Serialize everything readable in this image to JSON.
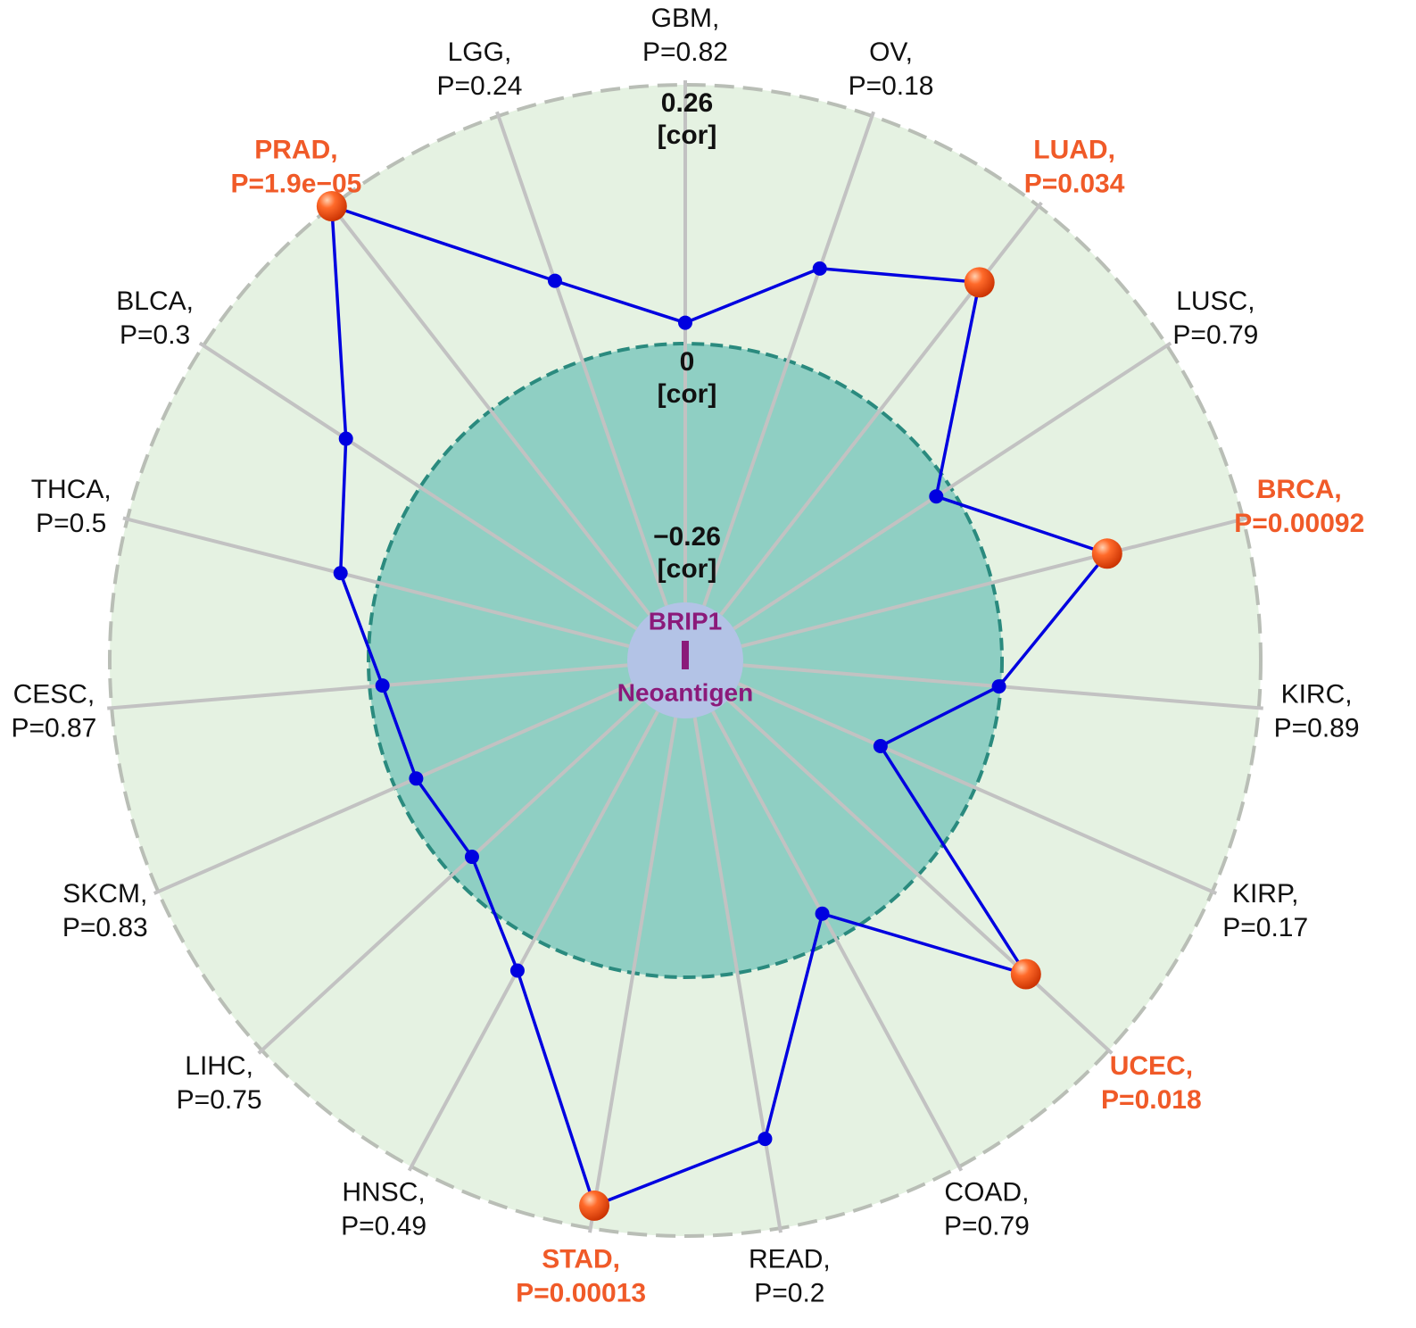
{
  "chart_data": {
    "type": "radar",
    "gene": "BRIP1",
    "feature": "Neoantigen",
    "categories": [
      "GBM,",
      "OV,",
      "LUAD,",
      "LUSC,",
      "BRCA,",
      "KIRC,",
      "KIRP,",
      "UCEC,",
      "COAD,",
      "READ,",
      "STAD,",
      "HNSC,",
      "LIHC,",
      "SKCM,",
      "CESC,",
      "THCA,",
      "BLCA,",
      "PRAD,",
      "LGG,"
    ],
    "p_labels": [
      "P=0.82",
      "P=0.18",
      "P=0.034",
      "P=0.79",
      "P=0.00092",
      "P=0.89",
      "P=0.17",
      "P=0.018",
      "P=0.79",
      "P=0.2",
      "P=0.00013",
      "P=0.49",
      "P=0.75",
      "P=0.83",
      "P=0.87",
      "P=0.5",
      "P=0.3",
      "P=1.9e−05",
      "P=0.24"
    ],
    "label_colors": [
      "#111111",
      "#111111",
      "#f05a28",
      "#111111",
      "#f05a28",
      "#111111",
      "#111111",
      "#f05a28",
      "#111111",
      "#111111",
      "#f05a28",
      "#111111",
      "#111111",
      "#111111",
      "#111111",
      "#111111",
      "#111111",
      "#f05a28",
      "#111111"
    ],
    "values": [
      0.021,
      0.098,
      0.163,
      -0.017,
      0.119,
      -0.002,
      -0.104,
      0.147,
      -0.029,
      0.169,
      0.237,
      0.036,
      -0.027,
      -0.023,
      -0.013,
      0.039,
      0.089,
      0.26,
      0.085
    ],
    "color": "#0000e0",
    "rlim": [
      -0.26,
      0.26
    ],
    "rticks": [
      {
        "value": -0.26,
        "label": "−0.26"
      },
      0,
      0.26
    ],
    "r_unit": "[cor]"
  }
}
